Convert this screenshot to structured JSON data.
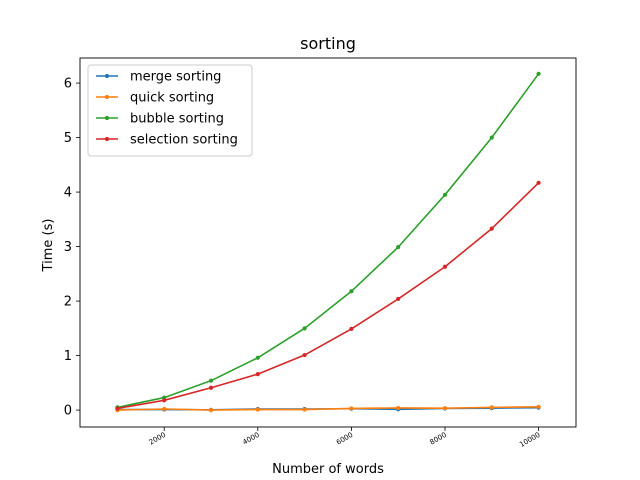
{
  "chart_data": {
    "type": "line",
    "title": "sorting",
    "xlabel": "Number of words",
    "ylabel": "Time (s)",
    "x": [
      1000,
      2000,
      3000,
      4000,
      5000,
      6000,
      7000,
      8000,
      9000,
      10000
    ],
    "xlim": [
      200,
      10800
    ],
    "ylim": [
      -0.31,
      6.46
    ],
    "xticks": [
      2000,
      4000,
      6000,
      8000,
      10000
    ],
    "xtick_labels": [
      "2000",
      "4000",
      "6000",
      "8000",
      "10000"
    ],
    "yticks": [
      0,
      1,
      2,
      3,
      4,
      5,
      6
    ],
    "ytick_labels": [
      "0",
      "1",
      "2",
      "3",
      "4",
      "5",
      "6"
    ],
    "grid": false,
    "legend_position": "top-left",
    "series": [
      {
        "name": "merge sorting",
        "color": "#1f77b4",
        "values": [
          0.01,
          0.01,
          0.005,
          0.02,
          0.02,
          0.025,
          0.015,
          0.03,
          0.035,
          0.045
        ]
      },
      {
        "name": "quick sorting",
        "color": "#ff7f0e",
        "values": [
          0.0,
          0.02,
          0.0,
          0.01,
          0.01,
          0.03,
          0.04,
          0.035,
          0.05,
          0.06
        ]
      },
      {
        "name": "bubble sorting",
        "color": "#2ca02c",
        "values": [
          0.05,
          0.23,
          0.54,
          0.96,
          1.5,
          2.18,
          2.99,
          3.95,
          5.0,
          6.17
        ]
      },
      {
        "name": "selection sorting",
        "color": "#d62728",
        "values": [
          0.03,
          0.18,
          0.41,
          0.66,
          1.01,
          1.49,
          2.04,
          2.63,
          3.33,
          4.17
        ]
      }
    ]
  }
}
